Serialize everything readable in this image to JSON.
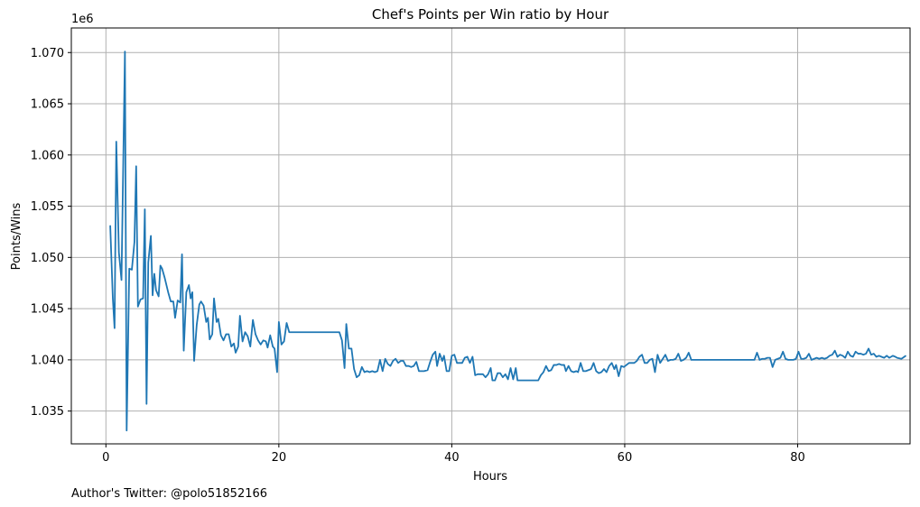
{
  "chart_data": {
    "type": "line",
    "title": "Chef's Points per Win ratio by Hour",
    "xlabel": "Hours",
    "ylabel": "Points/Wins",
    "y_offset_label": "1e6",
    "xlim": [
      -4,
      93
    ],
    "ylim": [
      1.0318,
      1.0724
    ],
    "x_ticks": [
      0,
      20,
      40,
      60,
      80
    ],
    "x_tick_labels": [
      "0",
      "20",
      "40",
      "60",
      "80"
    ],
    "y_ticks": [
      1.035,
      1.04,
      1.045,
      1.05,
      1.055,
      1.06,
      1.065,
      1.07
    ],
    "y_tick_labels": [
      "1.035",
      "1.040",
      "1.045",
      "1.050",
      "1.055",
      "1.060",
      "1.065",
      "1.070"
    ],
    "grid": true,
    "line_color": "#1f77b4",
    "series": [
      {
        "points": [
          [
            0.5,
            1.0531
          ],
          [
            0.8,
            1.046
          ],
          [
            1.0,
            1.0431
          ],
          [
            1.2,
            1.0613
          ],
          [
            1.5,
            1.0505
          ],
          [
            1.8,
            1.0478
          ],
          [
            2.2,
            1.0701
          ],
          [
            2.4,
            1.0331
          ],
          [
            2.7,
            1.0489
          ],
          [
            3.0,
            1.0488
          ],
          [
            3.3,
            1.0515
          ],
          [
            3.5,
            1.0589
          ],
          [
            3.7,
            1.0452
          ],
          [
            4.0,
            1.0459
          ],
          [
            4.3,
            1.046
          ],
          [
            4.5,
            1.0547
          ],
          [
            4.7,
            1.0357
          ],
          [
            4.9,
            1.0495
          ],
          [
            5.2,
            1.0521
          ],
          [
            5.4,
            1.0463
          ],
          [
            5.6,
            1.0484
          ],
          [
            5.8,
            1.0468
          ],
          [
            6.1,
            1.0462
          ],
          [
            6.3,
            1.0492
          ],
          [
            6.5,
            1.0489
          ],
          [
            6.8,
            1.048
          ],
          [
            7.2,
            1.0466
          ],
          [
            7.5,
            1.0457
          ],
          [
            7.8,
            1.0457
          ],
          [
            8.0,
            1.0441
          ],
          [
            8.3,
            1.0458
          ],
          [
            8.6,
            1.0456
          ],
          [
            8.8,
            1.0503
          ],
          [
            9.0,
            1.0409
          ],
          [
            9.3,
            1.0466
          ],
          [
            9.6,
            1.0473
          ],
          [
            9.8,
            1.046
          ],
          [
            10.0,
            1.0466
          ],
          [
            10.2,
            1.0399
          ],
          [
            10.5,
            1.0434
          ],
          [
            10.8,
            1.0454
          ],
          [
            11.0,
            1.0457
          ],
          [
            11.3,
            1.0453
          ],
          [
            11.6,
            1.0437
          ],
          [
            11.8,
            1.0441
          ],
          [
            12.0,
            1.042
          ],
          [
            12.3,
            1.0425
          ],
          [
            12.5,
            1.046
          ],
          [
            12.8,
            1.0437
          ],
          [
            13.0,
            1.044
          ],
          [
            13.3,
            1.0424
          ],
          [
            13.6,
            1.0419
          ],
          [
            13.9,
            1.0425
          ],
          [
            14.2,
            1.0425
          ],
          [
            14.5,
            1.0413
          ],
          [
            14.8,
            1.0416
          ],
          [
            15.0,
            1.0407
          ],
          [
            15.3,
            1.0413
          ],
          [
            15.5,
            1.0443
          ],
          [
            15.8,
            1.0418
          ],
          [
            16.1,
            1.0427
          ],
          [
            16.4,
            1.0423
          ],
          [
            16.7,
            1.0413
          ],
          [
            17.0,
            1.0439
          ],
          [
            17.3,
            1.0425
          ],
          [
            17.6,
            1.0419
          ],
          [
            17.9,
            1.0415
          ],
          [
            18.2,
            1.0419
          ],
          [
            18.5,
            1.0418
          ],
          [
            18.7,
            1.0412
          ],
          [
            19.0,
            1.0424
          ],
          [
            19.3,
            1.0413
          ],
          [
            19.5,
            1.0411
          ],
          [
            19.8,
            1.0388
          ],
          [
            20.0,
            1.0437
          ],
          [
            20.3,
            1.0415
          ],
          [
            20.6,
            1.0418
          ],
          [
            20.9,
            1.0436
          ],
          [
            21.2,
            1.0427
          ],
          [
            27.0,
            1.0427
          ],
          [
            27.3,
            1.0419
          ],
          [
            27.6,
            1.0392
          ],
          [
            27.8,
            1.0435
          ],
          [
            28.1,
            1.0411
          ],
          [
            28.4,
            1.0411
          ],
          [
            28.7,
            1.0391
          ],
          [
            29.0,
            1.0383
          ],
          [
            29.3,
            1.0385
          ],
          [
            29.6,
            1.0393
          ],
          [
            29.9,
            1.0388
          ],
          [
            30.2,
            1.0389
          ],
          [
            30.5,
            1.0388
          ],
          [
            30.8,
            1.0389
          ],
          [
            31.1,
            1.0388
          ],
          [
            31.4,
            1.0389
          ],
          [
            31.7,
            1.04
          ],
          [
            32.0,
            1.0389
          ],
          [
            32.3,
            1.0401
          ],
          [
            32.6,
            1.0396
          ],
          [
            32.9,
            1.0394
          ],
          [
            33.2,
            1.0399
          ],
          [
            33.5,
            1.0401
          ],
          [
            33.8,
            1.0397
          ],
          [
            34.1,
            1.0399
          ],
          [
            34.4,
            1.0399
          ],
          [
            34.7,
            1.0394
          ],
          [
            35.0,
            1.0394
          ],
          [
            35.3,
            1.0393
          ],
          [
            35.6,
            1.0394
          ],
          [
            35.9,
            1.0398
          ],
          [
            36.2,
            1.0389
          ],
          [
            36.5,
            1.0389
          ],
          [
            36.8,
            1.0389
          ],
          [
            37.2,
            1.039
          ],
          [
            37.5,
            1.0398
          ],
          [
            37.8,
            1.0405
          ],
          [
            38.1,
            1.0408
          ],
          [
            38.3,
            1.0394
          ],
          [
            38.6,
            1.0406
          ],
          [
            38.9,
            1.0399
          ],
          [
            39.1,
            1.0404
          ],
          [
            39.4,
            1.0389
          ],
          [
            39.7,
            1.0389
          ],
          [
            40.0,
            1.0404
          ],
          [
            40.3,
            1.0405
          ],
          [
            40.6,
            1.0397
          ],
          [
            40.9,
            1.0397
          ],
          [
            41.2,
            1.0397
          ],
          [
            41.5,
            1.0402
          ],
          [
            41.8,
            1.0403
          ],
          [
            42.1,
            1.0397
          ],
          [
            42.4,
            1.0403
          ],
          [
            42.7,
            1.0385
          ],
          [
            43.0,
            1.0386
          ],
          [
            43.3,
            1.0386
          ],
          [
            43.6,
            1.0386
          ],
          [
            43.9,
            1.0383
          ],
          [
            44.2,
            1.0386
          ],
          [
            44.5,
            1.0392
          ],
          [
            44.7,
            1.038
          ],
          [
            45.0,
            1.038
          ],
          [
            45.3,
            1.0387
          ],
          [
            45.6,
            1.0387
          ],
          [
            45.9,
            1.0383
          ],
          [
            46.2,
            1.0386
          ],
          [
            46.5,
            1.0381
          ],
          [
            46.8,
            1.0392
          ],
          [
            47.1,
            1.0381
          ],
          [
            47.4,
            1.0392
          ],
          [
            47.6,
            1.038
          ],
          [
            50.0,
            1.038
          ],
          [
            50.3,
            1.0385
          ],
          [
            50.6,
            1.0388
          ],
          [
            50.9,
            1.0394
          ],
          [
            51.2,
            1.0389
          ],
          [
            51.5,
            1.039
          ],
          [
            51.8,
            1.0395
          ],
          [
            52.1,
            1.0395
          ],
          [
            52.4,
            1.0396
          ],
          [
            52.7,
            1.0395
          ],
          [
            53.0,
            1.0395
          ],
          [
            53.2,
            1.0389
          ],
          [
            53.5,
            1.0394
          ],
          [
            53.8,
            1.0389
          ],
          [
            54.1,
            1.0388
          ],
          [
            54.4,
            1.0389
          ],
          [
            54.6,
            1.0388
          ],
          [
            54.9,
            1.0397
          ],
          [
            55.2,
            1.0389
          ],
          [
            55.5,
            1.0389
          ],
          [
            55.8,
            1.039
          ],
          [
            56.1,
            1.0391
          ],
          [
            56.4,
            1.0397
          ],
          [
            56.7,
            1.0389
          ],
          [
            57.0,
            1.0387
          ],
          [
            57.3,
            1.0388
          ],
          [
            57.6,
            1.0391
          ],
          [
            57.9,
            1.0388
          ],
          [
            58.2,
            1.0394
          ],
          [
            58.5,
            1.0397
          ],
          [
            58.8,
            1.0391
          ],
          [
            59.0,
            1.0395
          ],
          [
            59.3,
            1.0384
          ],
          [
            59.6,
            1.0394
          ],
          [
            59.9,
            1.0393
          ],
          [
            60.2,
            1.0395
          ],
          [
            60.5,
            1.0397
          ],
          [
            60.8,
            1.0397
          ],
          [
            61.1,
            1.0397
          ],
          [
            61.4,
            1.0399
          ],
          [
            61.7,
            1.0403
          ],
          [
            62.0,
            1.0405
          ],
          [
            62.3,
            1.0397
          ],
          [
            62.6,
            1.0397
          ],
          [
            62.9,
            1.04
          ],
          [
            63.2,
            1.0401
          ],
          [
            63.5,
            1.0388
          ],
          [
            63.8,
            1.0405
          ],
          [
            64.1,
            1.0397
          ],
          [
            64.4,
            1.0401
          ],
          [
            64.7,
            1.0405
          ],
          [
            65.0,
            1.0399
          ],
          [
            65.3,
            1.04
          ],
          [
            65.6,
            1.04
          ],
          [
            65.9,
            1.0401
          ],
          [
            66.2,
            1.0406
          ],
          [
            66.5,
            1.0399
          ],
          [
            66.8,
            1.04
          ],
          [
            67.1,
            1.0402
          ],
          [
            67.4,
            1.0407
          ],
          [
            67.7,
            1.04
          ],
          [
            75.0,
            1.04
          ],
          [
            75.3,
            1.0407
          ],
          [
            75.6,
            1.04
          ],
          [
            75.9,
            1.0401
          ],
          [
            76.2,
            1.0401
          ],
          [
            76.5,
            1.0402
          ],
          [
            76.8,
            1.0402
          ],
          [
            77.1,
            1.0393
          ],
          [
            77.4,
            1.04
          ],
          [
            77.7,
            1.0401
          ],
          [
            78.0,
            1.0402
          ],
          [
            78.3,
            1.0408
          ],
          [
            78.6,
            1.0401
          ],
          [
            78.9,
            1.04
          ],
          [
            79.2,
            1.04
          ],
          [
            79.5,
            1.04
          ],
          [
            79.8,
            1.0401
          ],
          [
            80.1,
            1.0408
          ],
          [
            80.4,
            1.0401
          ],
          [
            80.7,
            1.0401
          ],
          [
            81.0,
            1.0402
          ],
          [
            81.3,
            1.0406
          ],
          [
            81.6,
            1.04
          ],
          [
            81.9,
            1.0401
          ],
          [
            82.2,
            1.0402
          ],
          [
            82.5,
            1.0401
          ],
          [
            82.8,
            1.0402
          ],
          [
            83.1,
            1.0401
          ],
          [
            83.4,
            1.0402
          ],
          [
            83.7,
            1.0404
          ],
          [
            84.0,
            1.0405
          ],
          [
            84.3,
            1.0409
          ],
          [
            84.6,
            1.0403
          ],
          [
            84.9,
            1.0405
          ],
          [
            85.2,
            1.0404
          ],
          [
            85.5,
            1.0402
          ],
          [
            85.8,
            1.0408
          ],
          [
            86.1,
            1.0404
          ],
          [
            86.4,
            1.0403
          ],
          [
            86.7,
            1.0408
          ],
          [
            87.0,
            1.0406
          ],
          [
            87.3,
            1.0406
          ],
          [
            87.6,
            1.0405
          ],
          [
            87.9,
            1.0406
          ],
          [
            88.2,
            1.0411
          ],
          [
            88.5,
            1.0405
          ],
          [
            88.8,
            1.0406
          ],
          [
            89.1,
            1.0403
          ],
          [
            89.4,
            1.0404
          ],
          [
            89.7,
            1.0403
          ],
          [
            90.0,
            1.0402
          ],
          [
            90.3,
            1.0404
          ],
          [
            90.6,
            1.0402
          ],
          [
            91.0,
            1.0404
          ],
          [
            91.3,
            1.0403
          ],
          [
            91.5,
            1.0402
          ],
          [
            92.0,
            1.0401
          ],
          [
            92.5,
            1.0404
          ]
        ]
      }
    ]
  },
  "footer": {
    "author_text": "Author's Twitter: @polo51852166"
  }
}
